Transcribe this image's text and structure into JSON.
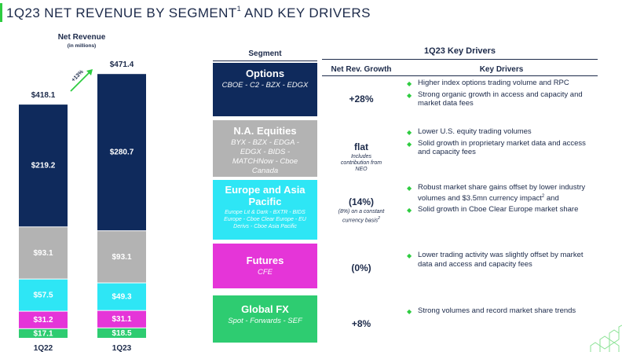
{
  "title": "1Q23 NET REVENUE BY SEGMENT",
  "title_sup": "1",
  "title_rest": " AND KEY DRIVERS",
  "chart_data": {
    "type": "bar",
    "stacked": true,
    "title": "Net Revenue",
    "subtitle": "(in millions)",
    "categories": [
      "1Q22",
      "1Q23"
    ],
    "totals": [
      418.1,
      471.4
    ],
    "total_labels": [
      "$418.1",
      "$471.4"
    ],
    "growth_label": "+13%",
    "series": [
      {
        "name": "Global FX",
        "color": "#2ecc71",
        "values": [
          17.1,
          18.5
        ],
        "labels": [
          "$17.1",
          "$18.5"
        ]
      },
      {
        "name": "Futures",
        "color": "#e535d8",
        "values": [
          31.2,
          31.1
        ],
        "labels": [
          "$31.2",
          "$31.1"
        ]
      },
      {
        "name": "Europe and Asia Pacific",
        "color": "#2ee6f5",
        "values": [
          57.5,
          49.3
        ],
        "labels": [
          "$57.5",
          "$49.3"
        ]
      },
      {
        "name": "N.A. Equities",
        "color": "#b3b3b3",
        "values": [
          93.1,
          93.1
        ],
        "labels": [
          "$93.1",
          "$93.1"
        ]
      },
      {
        "name": "Options",
        "color": "#0f2a5c",
        "values": [
          219.2,
          280.7
        ],
        "labels": [
          "$219.2",
          "$280.7"
        ]
      }
    ]
  },
  "table": {
    "headers": {
      "segment": "Segment",
      "section": "1Q23 Key Drivers",
      "growth": "Net Rev. Growth",
      "drivers": "Key Drivers"
    },
    "rows": [
      {
        "name": "Options",
        "sub": "CBOE - C2 - BZX - EDGX",
        "color": "#0f2a5c",
        "growth": "+28%",
        "note": "",
        "drivers": [
          "Higher index options trading volume and RPC",
          "Strong organic growth in access and capacity and market data fees"
        ]
      },
      {
        "name": "N.A. Equities",
        "sub": "BYX - BZX - EDGA - EDGX - BIDS - MATCHNow - Cboe Canada",
        "color": "#b3b3b3",
        "growth": "flat",
        "note": "Includes contribution from NEO",
        "drivers": [
          "Lower U.S. equity trading volumes",
          "Solid growth in proprietary market data and access and capacity fees"
        ]
      },
      {
        "name": "Europe and Asia Pacific",
        "sub": "Europe Lit & Dark - BXTR - BIDS Europe - Cboe Clear Europe - EU Derivs - Cboe Asia Pacific",
        "color": "#2ee6f5",
        "growth": "(14%)",
        "note": "(8%) on a constant currency basis",
        "note_sup": "2",
        "drivers": [
          "Robust market share gains offset by lower industry volumes and $3.5mn currency impact",
          "Solid growth in Cboe Clear Europe market share"
        ],
        "driver_sup": "2",
        "driver_suffix": " and"
      },
      {
        "name": "Futures",
        "sub": "CFE",
        "color": "#e535d8",
        "growth": "(0%)",
        "note": "",
        "drivers": [
          "Lower trading activity was slightly offset by market data and access and capacity fees"
        ]
      },
      {
        "name": "Global FX",
        "sub": "Spot - Forwards - SEF",
        "color": "#2ecc71",
        "growth": "+8%",
        "note": "",
        "drivers": [
          "Strong volumes and record market share trends"
        ]
      }
    ]
  }
}
